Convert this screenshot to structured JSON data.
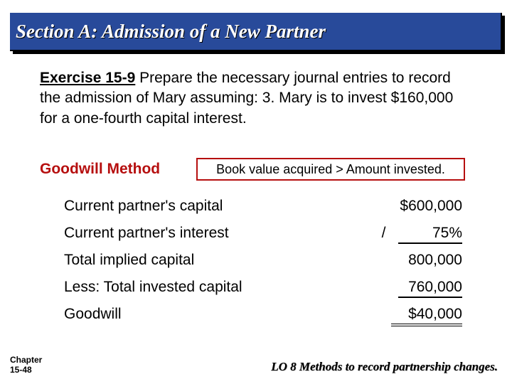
{
  "title": "Section A: Admission of a New Partner",
  "exercise": {
    "label": "Exercise 15-9",
    "text": "  Prepare the necessary journal entries to record the admission of Mary assuming:  3.  Mary is to invest $160,000 for a one-fourth capital interest."
  },
  "method": "Goodwill Method",
  "bv_note": "Book value acquired > Amount invested.",
  "calc": {
    "rows": [
      {
        "label": "Current partner's capital",
        "value": "$600,000"
      },
      {
        "label": "Current partner's interest",
        "value_prefix": "/",
        "value": "75%",
        "underline": "single"
      },
      {
        "label": "Total implied capital",
        "value": "800,000"
      },
      {
        "label": "Less: Total invested capital",
        "value": "760,000",
        "underline": "single"
      },
      {
        "label": "Goodwill",
        "value": "$40,000",
        "underline": "double"
      }
    ]
  },
  "footer": {
    "chapter_line1": "Chapter",
    "chapter_line2": "15-48",
    "lo": "LO 8  Methods to record partnership changes."
  },
  "colors": {
    "title_bg": "#284a9a",
    "title_fg": "#ffffff",
    "accent_red": "#b60f0f",
    "text": "#000000",
    "bg": "#ffffff"
  },
  "fonts": {
    "title": "Comic Sans MS italic bold 27pt",
    "body": "Trebuchet MS 21pt",
    "footer_left": "Arial bold 12pt",
    "footer_right": "Comic Sans MS italic bold 17pt"
  }
}
